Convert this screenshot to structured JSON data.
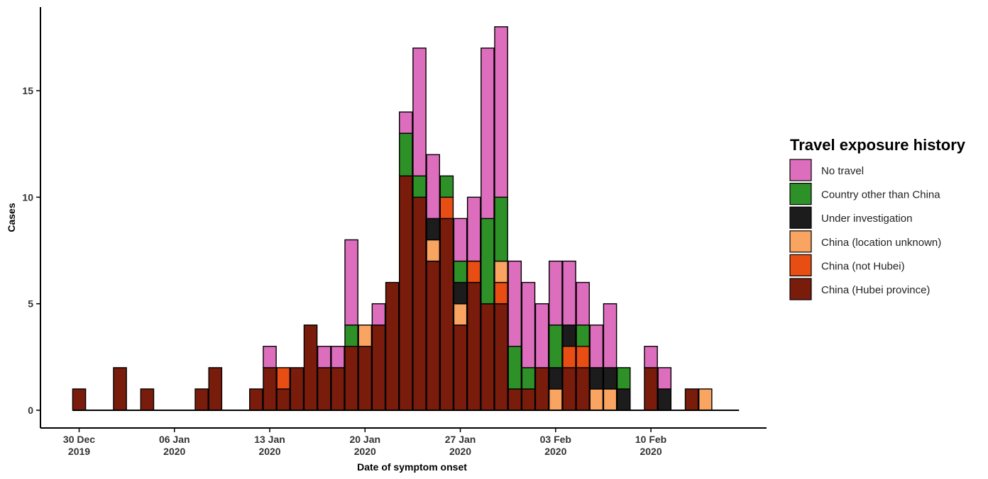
{
  "chart_data": {
    "type": "bar",
    "stacked": true,
    "xlabel": "Date of symptom onset",
    "ylabel": "Cases",
    "ylim": [
      0,
      18.5
    ],
    "yticks": [
      0,
      5,
      10,
      15
    ],
    "x_start": "2019-12-30",
    "x_ticks": [
      {
        "date": "2019-12-30",
        "line1": "30 Dec",
        "line2": "2019"
      },
      {
        "date": "2020-01-06",
        "line1": "06 Jan",
        "line2": "2020"
      },
      {
        "date": "2020-01-13",
        "line1": "13 Jan",
        "line2": "2020"
      },
      {
        "date": "2020-01-20",
        "line1": "20 Jan",
        "line2": "2020"
      },
      {
        "date": "2020-01-27",
        "line1": "27 Jan",
        "line2": "2020"
      },
      {
        "date": "2020-02-03",
        "line1": "03 Feb",
        "line2": "2020"
      },
      {
        "date": "2020-02-10",
        "line1": "10 Feb",
        "line2": "2020"
      }
    ],
    "categories": [
      "2019-12-30",
      "2019-12-31",
      "2020-01-01",
      "2020-01-02",
      "2020-01-03",
      "2020-01-04",
      "2020-01-05",
      "2020-01-06",
      "2020-01-07",
      "2020-01-08",
      "2020-01-09",
      "2020-01-10",
      "2020-01-11",
      "2020-01-12",
      "2020-01-13",
      "2020-01-14",
      "2020-01-15",
      "2020-01-16",
      "2020-01-17",
      "2020-01-18",
      "2020-01-19",
      "2020-01-20",
      "2020-01-21",
      "2020-01-22",
      "2020-01-23",
      "2020-01-24",
      "2020-01-25",
      "2020-01-26",
      "2020-01-27",
      "2020-01-28",
      "2020-01-29",
      "2020-01-30",
      "2020-01-31",
      "2020-02-01",
      "2020-02-02",
      "2020-02-03",
      "2020-02-04",
      "2020-02-05",
      "2020-02-06",
      "2020-02-07",
      "2020-02-08",
      "2020-02-09",
      "2020-02-10",
      "2020-02-11",
      "2020-02-12",
      "2020-02-13",
      "2020-02-14",
      "2020-02-15",
      "2020-02-16"
    ],
    "legend": {
      "title": "Travel exposure history",
      "position": "right",
      "entries": [
        "No travel",
        "Country other than China",
        "Under investigation",
        "China (location unknown)",
        "China (not Hubei)",
        "China (Hubei province)"
      ]
    },
    "series": [
      {
        "name": "China (Hubei province)",
        "color": "#7a1c0c",
        "values": [
          1,
          0,
          0,
          2,
          0,
          1,
          0,
          0,
          0,
          1,
          2,
          0,
          0,
          1,
          2,
          1,
          2,
          4,
          2,
          2,
          3,
          3,
          4,
          6,
          11,
          10,
          7,
          9,
          4,
          6,
          5,
          5,
          1,
          1,
          2,
          0,
          2,
          2,
          0,
          0,
          0,
          0,
          2,
          0,
          0,
          1,
          0,
          0,
          0
        ]
      },
      {
        "name": "China (not Hubei)",
        "color": "#e84e13",
        "values": [
          0,
          0,
          0,
          0,
          0,
          0,
          0,
          0,
          0,
          0,
          0,
          0,
          0,
          0,
          0,
          1,
          0,
          0,
          0,
          0,
          0,
          0,
          0,
          0,
          0,
          0,
          0,
          1,
          0,
          1,
          0,
          1,
          0,
          0,
          0,
          0,
          1,
          1,
          0,
          0,
          0,
          0,
          0,
          0,
          0,
          0,
          0,
          0,
          0
        ]
      },
      {
        "name": "China (location unknown)",
        "color": "#f9a460",
        "values": [
          0,
          0,
          0,
          0,
          0,
          0,
          0,
          0,
          0,
          0,
          0,
          0,
          0,
          0,
          0,
          0,
          0,
          0,
          0,
          0,
          0,
          1,
          0,
          0,
          0,
          0,
          1,
          0,
          1,
          0,
          0,
          1,
          0,
          0,
          0,
          1,
          0,
          0,
          1,
          1,
          0,
          0,
          0,
          0,
          0,
          0,
          1,
          0,
          0
        ]
      },
      {
        "name": "Under investigation",
        "color": "#1c1c1c",
        "values": [
          0,
          0,
          0,
          0,
          0,
          0,
          0,
          0,
          0,
          0,
          0,
          0,
          0,
          0,
          0,
          0,
          0,
          0,
          0,
          0,
          0,
          0,
          0,
          0,
          0,
          0,
          1,
          0,
          1,
          0,
          0,
          0,
          0,
          0,
          0,
          1,
          1,
          0,
          1,
          1,
          1,
          0,
          0,
          1,
          0,
          0,
          0,
          0,
          0
        ]
      },
      {
        "name": "Country other than China",
        "color": "#2e9128",
        "values": [
          0,
          0,
          0,
          0,
          0,
          0,
          0,
          0,
          0,
          0,
          0,
          0,
          0,
          0,
          0,
          0,
          0,
          0,
          0,
          0,
          1,
          0,
          0,
          0,
          2,
          1,
          0,
          1,
          1,
          0,
          4,
          3,
          2,
          1,
          0,
          2,
          0,
          1,
          0,
          0,
          1,
          0,
          0,
          0,
          0,
          0,
          0,
          0,
          0
        ]
      },
      {
        "name": "No travel",
        "color": "#dd6ebd",
        "values": [
          0,
          0,
          0,
          0,
          0,
          0,
          0,
          0,
          0,
          0,
          0,
          0,
          0,
          0,
          1,
          0,
          0,
          0,
          1,
          1,
          4,
          0,
          1,
          0,
          1,
          6,
          3,
          0,
          2,
          3,
          8,
          8,
          4,
          4,
          3,
          3,
          3,
          2,
          2,
          3,
          0,
          0,
          1,
          1,
          0,
          0,
          0,
          0,
          0
        ]
      }
    ]
  }
}
